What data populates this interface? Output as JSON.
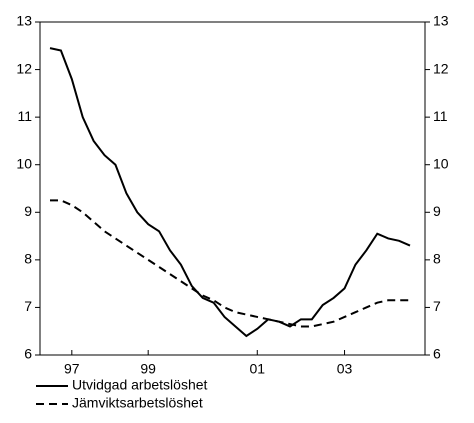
{
  "chart_data": {
    "type": "line",
    "categories": [
      null,
      null,
      "97",
      null,
      null,
      null,
      null,
      null,
      null,
      "99",
      null,
      null,
      null,
      null,
      null,
      null,
      null,
      null,
      null,
      "01",
      null,
      null,
      null,
      null,
      null,
      null,
      null,
      "03",
      null,
      null,
      null,
      null,
      null,
      null
    ],
    "series": [
      {
        "name": "Utvidgad arbetslöshet",
        "color": "#000000",
        "dash": "solid",
        "values": [
          12.45,
          12.4,
          11.8,
          11.0,
          10.5,
          10.2,
          10.0,
          9.4,
          9.0,
          8.75,
          8.6,
          8.2,
          7.9,
          7.45,
          7.2,
          7.1,
          6.8,
          6.6,
          6.4,
          6.55,
          6.75,
          6.7,
          6.6,
          6.75,
          6.75,
          7.05,
          7.2,
          7.4,
          7.9,
          8.2,
          8.55,
          8.45,
          8.4,
          8.3
        ]
      },
      {
        "name": "Jämviktsarbetslöshet",
        "color": "#000000",
        "dash": "dashed",
        "values": [
          9.25,
          9.25,
          9.15,
          9.0,
          8.8,
          8.6,
          8.45,
          8.3,
          8.15,
          8.0,
          7.85,
          7.7,
          7.55,
          7.4,
          7.25,
          7.15,
          7.0,
          6.9,
          6.85,
          6.8,
          6.75,
          6.7,
          6.65,
          6.6,
          6.6,
          6.65,
          6.7,
          6.8,
          6.9,
          7.0,
          7.1,
          7.15,
          7.15,
          7.15
        ]
      }
    ],
    "ylim": [
      6,
      13
    ],
    "yticks": [
      6,
      7,
      8,
      9,
      10,
      11,
      12,
      13
    ],
    "y2lim": [
      6,
      13
    ],
    "y2ticks": [
      6,
      7,
      8,
      9,
      10,
      11,
      12,
      13
    ],
    "grid": false
  }
}
